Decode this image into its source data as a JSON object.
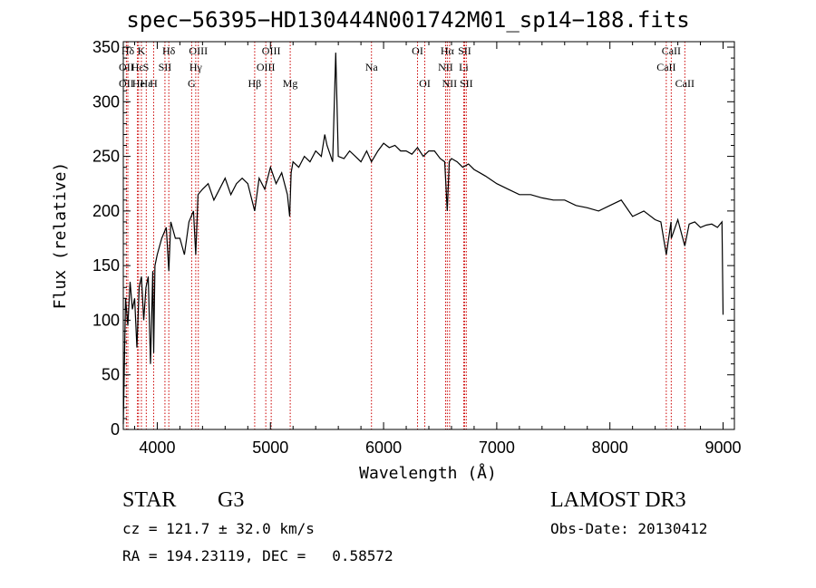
{
  "chart_data": {
    "type": "line",
    "title": "spec−56395−HD130444N001742M01_sp14−188.fits",
    "xlabel": "Wavelength (Å)",
    "ylabel": "Flux (relative)",
    "xlim": [
      3700,
      9100
    ],
    "ylim": [
      0,
      355
    ],
    "xticks": [
      4000,
      5000,
      6000,
      7000,
      8000,
      9000
    ],
    "yticks": [
      0,
      50,
      100,
      150,
      200,
      250,
      300,
      350
    ],
    "series": [
      {
        "name": "flux",
        "x": [
          3700,
          3720,
          3740,
          3760,
          3780,
          3800,
          3820,
          3840,
          3860,
          3880,
          3900,
          3920,
          3940,
          3960,
          3968,
          3980,
          4000,
          4040,
          4080,
          4102,
          4120,
          4160,
          4200,
          4240,
          4280,
          4320,
          4340,
          4360,
          4400,
          4450,
          4500,
          4550,
          4600,
          4650,
          4700,
          4750,
          4800,
          4861,
          4900,
          4950,
          5000,
          5050,
          5100,
          5150,
          5170,
          5183,
          5200,
          5250,
          5300,
          5350,
          5400,
          5450,
          5480,
          5500,
          5550,
          5577,
          5600,
          5650,
          5700,
          5750,
          5800,
          5850,
          5893,
          5950,
          6000,
          6050,
          6100,
          6150,
          6200,
          6250,
          6300,
          6350,
          6400,
          6450,
          6500,
          6540,
          6563,
          6580,
          6600,
          6650,
          6700,
          6750,
          6800,
          6850,
          6900,
          7000,
          7100,
          7200,
          7300,
          7400,
          7500,
          7600,
          7700,
          7800,
          7900,
          8000,
          8100,
          8200,
          8300,
          8400,
          8450,
          8498,
          8540,
          8542,
          8600,
          8662,
          8700,
          8750,
          8800,
          8850,
          8900,
          8950,
          8990,
          9000
        ],
        "values": [
          5,
          120,
          95,
          135,
          110,
          120,
          75,
          130,
          140,
          100,
          130,
          140,
          60,
          145,
          70,
          150,
          160,
          175,
          185,
          145,
          190,
          175,
          175,
          160,
          190,
          200,
          160,
          215,
          220,
          225,
          210,
          220,
          230,
          215,
          225,
          230,
          225,
          200,
          230,
          220,
          240,
          225,
          235,
          215,
          195,
          235,
          245,
          240,
          250,
          245,
          255,
          250,
          270,
          260,
          245,
          345,
          250,
          248,
          255,
          250,
          245,
          255,
          245,
          255,
          262,
          258,
          260,
          255,
          255,
          252,
          258,
          250,
          255,
          255,
          248,
          245,
          200,
          245,
          248,
          245,
          240,
          243,
          238,
          235,
          232,
          225,
          220,
          215,
          215,
          212,
          210,
          210,
          205,
          203,
          200,
          205,
          210,
          195,
          200,
          192,
          190,
          160,
          190,
          175,
          192,
          168,
          188,
          190,
          185,
          187,
          188,
          185,
          190,
          105
        ]
      }
    ],
    "lines": [
      {
        "label": "Hδ",
        "wl": 3740,
        "row": 0
      },
      {
        "label": "OII",
        "wl": 3727,
        "row": 1
      },
      {
        "label": "OII",
        "wl": 3727,
        "row": 2
      },
      {
        "label": "Hε",
        "wl": 3825,
        "row": 1
      },
      {
        "label": "K",
        "wl": 3860,
        "row": 0
      },
      {
        "label": "Hε",
        "wl": 3903,
        "row": 2
      },
      {
        "label": "He",
        "wl": 3835,
        "row": 2
      },
      {
        "label": "S",
        "wl": 3900,
        "row": 1
      },
      {
        "label": "SII",
        "wl": 4068,
        "row": 1
      },
      {
        "label": "H",
        "wl": 3968,
        "row": 2
      },
      {
        "label": "Hδ",
        "wl": 4102,
        "row": 0
      },
      {
        "label": "OIII",
        "wl": 4363,
        "row": 0
      },
      {
        "label": "Hγ",
        "wl": 4340,
        "row": 1
      },
      {
        "label": "G",
        "wl": 4304,
        "row": 2
      },
      {
        "label": "OIII",
        "wl": 5007,
        "row": 0
      },
      {
        "label": "OIII",
        "wl": 4959,
        "row": 1
      },
      {
        "label": "Hβ",
        "wl": 4861,
        "row": 2
      },
      {
        "label": "Mg",
        "wl": 5175,
        "row": 2
      },
      {
        "label": "Na",
        "wl": 5893,
        "row": 1
      },
      {
        "label": "OI",
        "wl": 6300,
        "row": 0
      },
      {
        "label": "OI",
        "wl": 6364,
        "row": 2
      },
      {
        "label": "Hα",
        "wl": 6563,
        "row": 0
      },
      {
        "label": "SII",
        "wl": 6716,
        "row": 0
      },
      {
        "label": "NII",
        "wl": 6548,
        "row": 1
      },
      {
        "label": "Li",
        "wl": 6708,
        "row": 1
      },
      {
        "label": "NII",
        "wl": 6583,
        "row": 2
      },
      {
        "label": "SII",
        "wl": 6731,
        "row": 2
      },
      {
        "label": "CaII",
        "wl": 8542,
        "row": 0
      },
      {
        "label": "CaII",
        "wl": 8498,
        "row": 1
      },
      {
        "label": "CaII",
        "wl": 8662,
        "row": 2
      }
    ],
    "line_color": "#cc0000"
  },
  "info": {
    "class": "STAR",
    "subclass": "G3",
    "survey": "LAMOST DR3",
    "cz": "cz = 121.7 ± 32.0 km/s",
    "obsdate": "Obs-Date: 20130412",
    "radec": "RA = 194.23119, DEC =   0.58572"
  }
}
